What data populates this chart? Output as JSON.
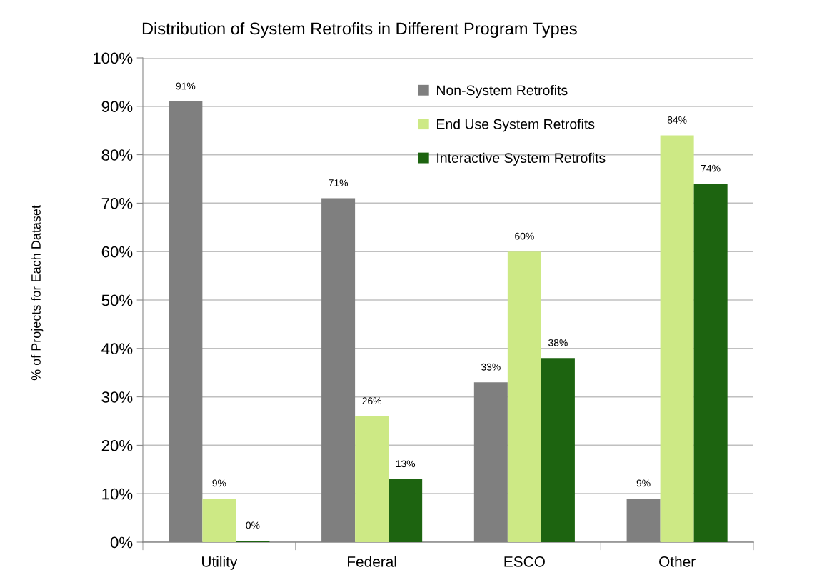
{
  "chart_data": {
    "type": "bar",
    "title": "Distribution of System Retrofits in Different Program Types",
    "ylabel": "% of Projects for Each Dataset",
    "categories": [
      "Utility",
      "Federal",
      "ESCO",
      "Other"
    ],
    "series": [
      {
        "name": "Non-System Retrofits",
        "color": "#7f7f7f",
        "values": [
          91,
          71,
          33,
          9
        ],
        "value_labels": [
          "91%",
          "71%",
          "33%",
          "9%"
        ]
      },
      {
        "name": "End Use System Retrofits",
        "color": "#cde985",
        "values": [
          9,
          26,
          60,
          84
        ],
        "value_labels": [
          "9%",
          "26%",
          "60%",
          "84%"
        ]
      },
      {
        "name": "Interactive System Retrofits",
        "color": "#1d6410",
        "values": [
          0.3,
          13,
          38,
          74
        ],
        "value_labels": [
          "0%",
          "13%",
          "38%",
          "74%"
        ]
      }
    ],
    "ylim": [
      0,
      100
    ],
    "yticks": [
      {
        "value": 0,
        "label": "0%"
      },
      {
        "value": 10,
        "label": "10%"
      },
      {
        "value": 20,
        "label": "20%"
      },
      {
        "value": 30,
        "label": "30%"
      },
      {
        "value": 40,
        "label": "40%"
      },
      {
        "value": 50,
        "label": "50%"
      },
      {
        "value": 60,
        "label": "60%"
      },
      {
        "value": 70,
        "label": "70%"
      },
      {
        "value": 80,
        "label": "80%"
      },
      {
        "value": 90,
        "label": "90%"
      },
      {
        "value": 100,
        "label": "100%"
      }
    ],
    "grid": "y",
    "legend": "top right"
  }
}
